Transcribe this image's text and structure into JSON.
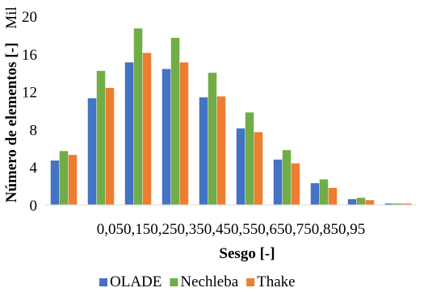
{
  "chart_data": {
    "type": "bar",
    "categories": [
      "0,05",
      "0,15",
      "0,25",
      "0,35",
      "0,45",
      "0,55",
      "0,65",
      "0,75",
      "0,85",
      "0,95"
    ],
    "series": [
      {
        "name": "OLADE",
        "color": "#4472C4",
        "values": [
          4.7,
          11.3,
          15.1,
          14.4,
          11.4,
          8.1,
          4.8,
          2.3,
          0.6,
          0.15
        ]
      },
      {
        "name": "Nechleba",
        "color": "#70AD47",
        "values": [
          5.7,
          14.2,
          18.7,
          17.7,
          14.0,
          9.8,
          5.8,
          2.7,
          0.75,
          0.15
        ]
      },
      {
        "name": "Thake",
        "color": "#ED7D31",
        "values": [
          5.3,
          12.4,
          16.1,
          15.1,
          11.5,
          7.7,
          4.4,
          1.8,
          0.5,
          0.15
        ]
      }
    ],
    "title": "",
    "xlabel": "Sesgo [-]",
    "ylabel": "Número de elementos [-]",
    "y_unit": "Mil",
    "ylim": [
      0,
      20
    ],
    "yticks": [
      0,
      4,
      8,
      12,
      16,
      20
    ],
    "grid": false,
    "legend": "bottom"
  }
}
